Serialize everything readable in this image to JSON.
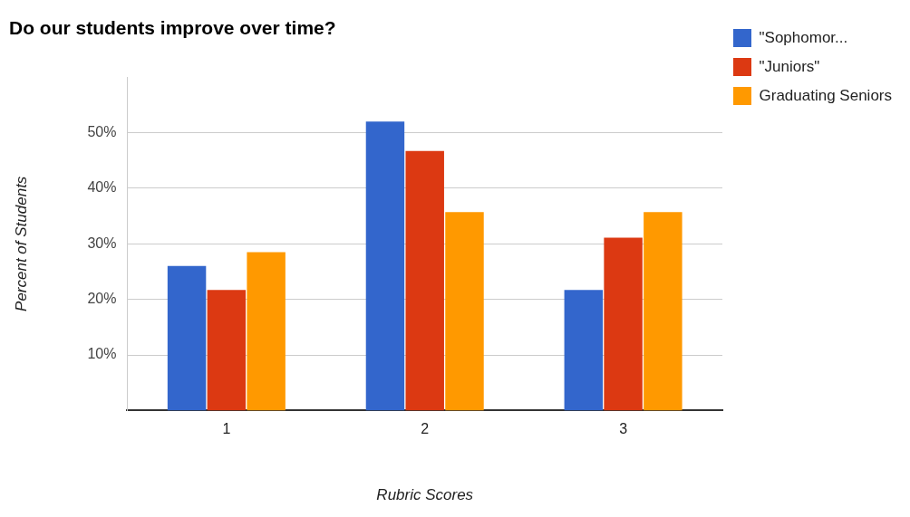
{
  "chart_data": {
    "type": "bar",
    "title": "Do our students improve over time?",
    "xlabel": "Rubric Scores",
    "ylabel": "Percent of Students",
    "categories": [
      "1",
      "2",
      "3"
    ],
    "series": [
      {
        "name": "\"Sophomor...",
        "color": "#3366cc",
        "values": [
          26,
          52,
          21.7
        ]
      },
      {
        "name": "\"Juniors\"",
        "color": "#dc3912",
        "values": [
          21.7,
          46.7,
          31.1
        ]
      },
      {
        "name": "Graduating Seniors",
        "color": "#ff9900",
        "values": [
          28.5,
          35.7,
          35.7
        ]
      }
    ],
    "ylim": [
      0,
      60
    ],
    "yticks": [
      {
        "value": 10,
        "label": "10%"
      },
      {
        "value": 20,
        "label": "20%"
      },
      {
        "value": 30,
        "label": "30%"
      },
      {
        "value": 40,
        "label": "40%"
      },
      {
        "value": 50,
        "label": "50%"
      }
    ],
    "grid": "y",
    "legend": "top right"
  }
}
